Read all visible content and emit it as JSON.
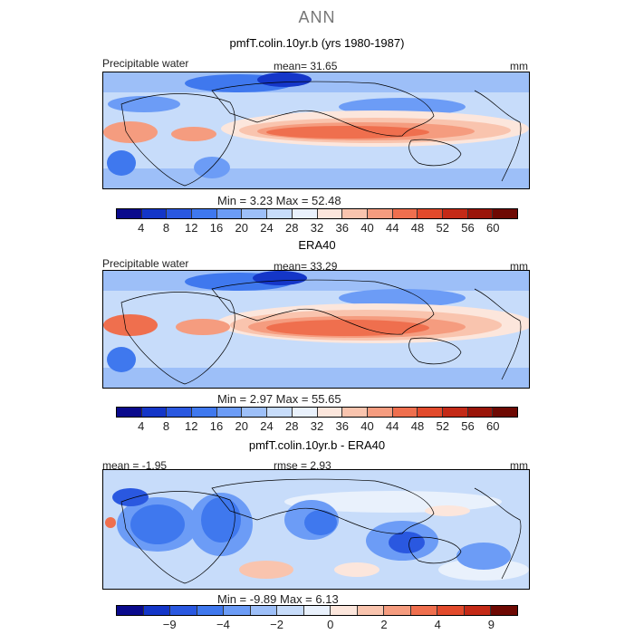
{
  "figure": {
    "title": "ANN"
  },
  "panels": [
    {
      "title": "pmfT.colin.10yr.b (yrs 1980-1987)",
      "left_label": "Precipitable water",
      "center_label": "mean=   31.65",
      "units": "mm",
      "min_max": "Min =    3.23  Max =   52.48",
      "colorbar_ticks": [
        "4",
        "8",
        "12",
        "16",
        "20",
        "24",
        "28",
        "32",
        "36",
        "40",
        "44",
        "48",
        "52",
        "56",
        "60"
      ]
    },
    {
      "title": "ERA40",
      "left_label": "Precipitable water",
      "center_label": "mean=   33.29",
      "units": "mm",
      "min_max": "Min =    2.97  Max =   55.65",
      "colorbar_ticks": [
        "4",
        "8",
        "12",
        "16",
        "20",
        "24",
        "28",
        "32",
        "36",
        "40",
        "44",
        "48",
        "52",
        "56",
        "60"
      ]
    },
    {
      "title": "pmfT.colin.10yr.b - ERA40",
      "left_label": "mean =   -1.95",
      "center_label": "rmse =    2.93",
      "units": "mm",
      "min_max": "Min =   -9.89  Max =    6.13",
      "colorbar_ticks": [
        "−9",
        "−4",
        "−2",
        "0",
        "2",
        "4",
        "9"
      ]
    }
  ],
  "colors": {
    "abs_scale": [
      "#0a0a8c",
      "#1436c8",
      "#2a58e0",
      "#3f78ee",
      "#6c9cf6",
      "#9dbff8",
      "#c7dcfa",
      "#e9f1fc",
      "#fce6dc",
      "#f9c4ae",
      "#f59c7f",
      "#ef6f4e",
      "#e24a2c",
      "#c42a17",
      "#9a1509",
      "#6e0903"
    ],
    "diff_scale": [
      "#0a0a8c",
      "#1436c8",
      "#2a58e0",
      "#3f78ee",
      "#6c9cf6",
      "#9dbff8",
      "#c7dcfa",
      "#e9f1fc",
      "#fce6dc",
      "#f9c4ae",
      "#f59c7f",
      "#ef6f4e",
      "#e24a2c",
      "#c42a17",
      "#6e0903"
    ]
  }
}
